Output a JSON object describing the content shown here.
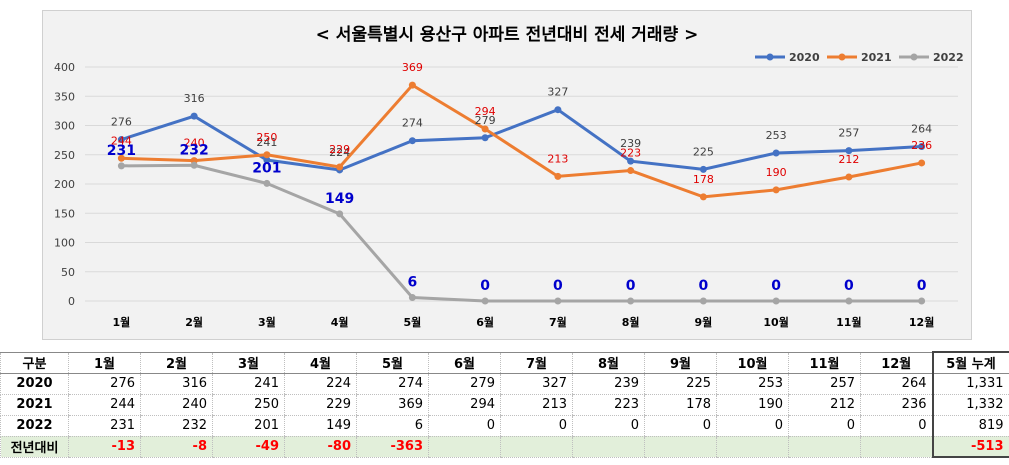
{
  "chart_data": {
    "type": "line",
    "title": "< 서울특별시 용산구  아파트 전년대비 전세 거래량 >",
    "categories": [
      "1월",
      "2월",
      "3월",
      "4월",
      "5월",
      "6월",
      "7월",
      "8월",
      "9월",
      "10월",
      "11월",
      "12월"
    ],
    "ylim": [
      0,
      400
    ],
    "y_ticks": [
      "0",
      "50",
      "100",
      "150",
      "200",
      "250",
      "300",
      "350",
      "400"
    ],
    "grid": true,
    "legend_position": "top-right",
    "series": [
      {
        "name": "2020",
        "color": "#4472c4",
        "values": [
          276,
          316,
          241,
          224,
          274,
          279,
          327,
          239,
          225,
          253,
          257,
          264
        ],
        "labels": [
          "276",
          "316",
          "241",
          "224",
          "274",
          "279",
          "327",
          "239",
          "225",
          "253",
          "257",
          "264"
        ],
        "label_color": "#404040"
      },
      {
        "name": "2021",
        "color": "#ed7d31",
        "values": [
          244,
          240,
          250,
          229,
          369,
          294,
          213,
          223,
          178,
          190,
          212,
          236
        ],
        "labels": [
          "244",
          "240",
          "250",
          "229",
          "369",
          "294",
          "213",
          "223",
          "178",
          "190",
          "212",
          "236"
        ],
        "label_color": "#e00000"
      },
      {
        "name": "2022",
        "color": "#a5a5a5",
        "values": [
          231,
          232,
          201,
          149,
          6,
          0,
          0,
          0,
          0,
          0,
          0,
          0
        ],
        "labels": [
          "231",
          "232",
          "201",
          "149",
          "6",
          "0",
          "0",
          "0",
          "0",
          "0",
          "0",
          "0"
        ],
        "label_color": "#0000cc"
      }
    ]
  },
  "table": {
    "headers": [
      "구분",
      "1월",
      "2월",
      "3월",
      "4월",
      "5월",
      "6월",
      "7월",
      "8월",
      "9월",
      "10월",
      "11월",
      "12월",
      "5월 누계"
    ],
    "rows": [
      {
        "label": "2020",
        "cells": [
          "276",
          "316",
          "241",
          "224",
          "274",
          "279",
          "327",
          "239",
          "225",
          "253",
          "257",
          "264"
        ],
        "total": "1,331"
      },
      {
        "label": "2021",
        "cells": [
          "244",
          "240",
          "250",
          "229",
          "369",
          "294",
          "213",
          "223",
          "178",
          "190",
          "212",
          "236"
        ],
        "total": "1,332"
      },
      {
        "label": "2022",
        "cells": [
          "231",
          "232",
          "201",
          "149",
          "6",
          "0",
          "0",
          "0",
          "0",
          "0",
          "0",
          "0"
        ],
        "total": "819"
      }
    ],
    "diff": {
      "label": "전년대비",
      "cells": [
        "-13",
        "-8",
        "-49",
        "-80",
        "-363",
        "",
        "",
        "",
        "",
        "",
        "",
        ""
      ],
      "total": "-513"
    }
  }
}
